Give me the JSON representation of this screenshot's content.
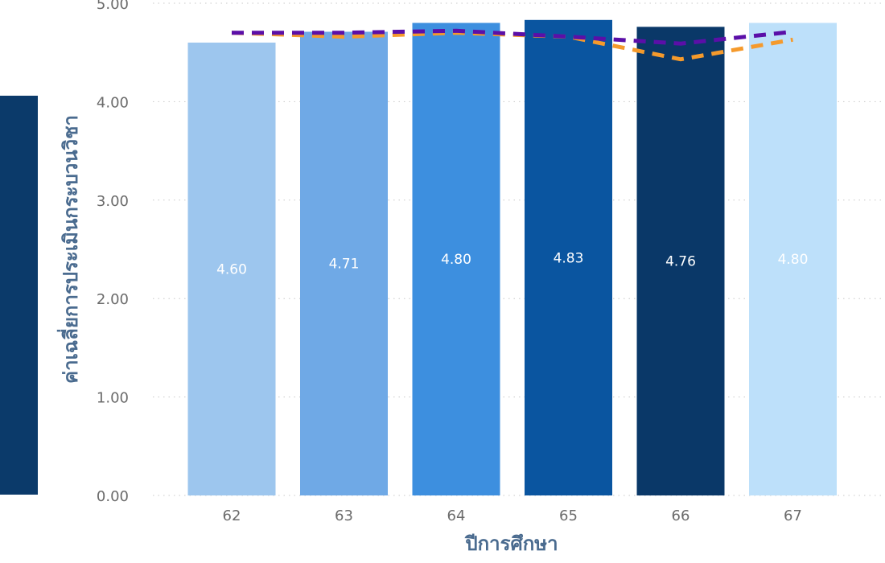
{
  "chart_data": {
    "type": "bar",
    "title": "",
    "xlabel": "ปีการศึกษา",
    "ylabel": "ค่าเฉลี่ยการประเมินกระบวนวิชา",
    "categories": [
      "62",
      "63",
      "64",
      "65",
      "66",
      "67"
    ],
    "values": [
      4.6,
      4.71,
      4.8,
      4.83,
      4.76,
      4.8
    ],
    "value_labels": [
      "4.60",
      "4.71",
      "4.80",
      "4.83",
      "4.76",
      "4.80"
    ],
    "bar_colors": [
      "#9dc6ee",
      "#6fa9e6",
      "#3d8fdf",
      "#0a55a0",
      "#0a3868",
      "#bde0fa"
    ],
    "label_colors": [
      "#ffffff",
      "#ffffff",
      "#ffffff",
      "#ffffff",
      "#ffffff",
      "#ffffff"
    ],
    "ylim": [
      0,
      5
    ],
    "yticks": [
      "0.00",
      "1.00",
      "2.00",
      "3.00",
      "4.00",
      "5.00"
    ],
    "grid": true,
    "lines": [
      {
        "style": "dashed",
        "color": "#f59a2c",
        "values": [
          4.7,
          4.66,
          4.7,
          4.66,
          4.43,
          4.63
        ]
      },
      {
        "style": "dashed",
        "color": "#5b0fa8",
        "values": [
          4.7,
          4.7,
          4.72,
          4.66,
          4.59,
          4.71
        ]
      }
    ],
    "legend_swatch_color": "#0b3a6a"
  }
}
